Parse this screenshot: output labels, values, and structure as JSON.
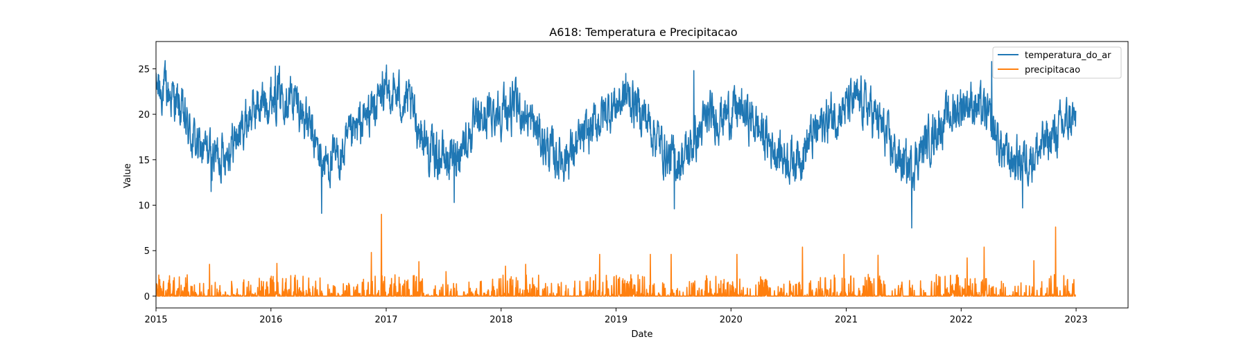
{
  "chart_data": {
    "type": "line",
    "title": "A618: Temperatura e Precipitacao",
    "xlabel": "Date",
    "ylabel": "Value",
    "xlim": [
      "2015-01-01",
      "2023-06-15"
    ],
    "ylim": [
      -1.3,
      28
    ],
    "x_ticks": [
      "2015",
      "2016",
      "2017",
      "2018",
      "2019",
      "2020",
      "2021",
      "2022",
      "2023"
    ],
    "y_ticks": [
      0,
      5,
      10,
      15,
      20,
      25
    ],
    "grid": false,
    "legend_position": "top-right",
    "x_start": "2015-01-01",
    "x_end": "2022-12-31",
    "series": [
      {
        "name": "temperatura_do_ar",
        "color": "#1f77b4",
        "monthly_mean": [
          22.8,
          22.3,
          20.5,
          18.0,
          16.2,
          15.8,
          15.5,
          16.3,
          17.5,
          19.5,
          20.8,
          21.5,
          22.3,
          22.5,
          21.5,
          19.8,
          17.0,
          14.5,
          14.8,
          15.5,
          17.5,
          19.0,
          20.5,
          21.8,
          22.5,
          21.8,
          20.8,
          18.5,
          16.0,
          15.5,
          15.0,
          16.0,
          17.5,
          18.8,
          19.8,
          20.5,
          20.5,
          20.8,
          20.0,
          18.5,
          16.8,
          15.5,
          15.3,
          16.0,
          17.0,
          18.5,
          19.8,
          20.8,
          21.5,
          21.8,
          20.5,
          19.0,
          17.0,
          15.0,
          14.8,
          15.8,
          17.5,
          19.5,
          19.8,
          20.0,
          20.5,
          20.0,
          19.0,
          17.5,
          16.3,
          15.5,
          15.0,
          16.0,
          17.5,
          18.8,
          19.8,
          20.5,
          21.0,
          21.5,
          20.5,
          19.0,
          16.8,
          15.0,
          14.0,
          15.5,
          17.0,
          18.5,
          19.5,
          20.5,
          21.5,
          21.0,
          20.0,
          18.0,
          15.5,
          15.0,
          15.0,
          15.5,
          16.5,
          17.5,
          18.5,
          19.5
        ],
        "daily_noise": 3.3,
        "extremes": [
          {
            "x": "2015-01-10",
            "y": 24.3
          },
          {
            "x": "2015-06-25",
            "y": 11.5
          },
          {
            "x": "2016-01-15",
            "y": 25.3
          },
          {
            "x": "2016-06-10",
            "y": 9.1
          },
          {
            "x": "2016-12-20",
            "y": 24.7
          },
          {
            "x": "2017-08-05",
            "y": 10.3
          },
          {
            "x": "2019-02-01",
            "y": 24.5
          },
          {
            "x": "2019-07-05",
            "y": 9.6
          },
          {
            "x": "2019-09-05",
            "y": 24.8
          },
          {
            "x": "2021-07-28",
            "y": 7.5
          },
          {
            "x": "2022-04-08",
            "y": 25.8
          },
          {
            "x": "2022-07-15",
            "y": 9.7
          }
        ]
      },
      {
        "name": "precipitacao",
        "color": "#ff7f0e",
        "rain_probability": 0.45,
        "typical_max": 1.5,
        "peaks": [
          {
            "x": "2015-06-20",
            "y": 3.5
          },
          {
            "x": "2016-01-20",
            "y": 3.6
          },
          {
            "x": "2016-06-05",
            "y": 2.0
          },
          {
            "x": "2016-11-15",
            "y": 4.8
          },
          {
            "x": "2016-12-17",
            "y": 9.0
          },
          {
            "x": "2017-04-15",
            "y": 3.8
          },
          {
            "x": "2017-07-10",
            "y": 2.7
          },
          {
            "x": "2018-01-15",
            "y": 3.3
          },
          {
            "x": "2018-03-20",
            "y": 3.5
          },
          {
            "x": "2018-11-10",
            "y": 4.6
          },
          {
            "x": "2019-04-20",
            "y": 4.6
          },
          {
            "x": "2019-06-25",
            "y": 4.6
          },
          {
            "x": "2020-01-20",
            "y": 4.6
          },
          {
            "x": "2020-08-15",
            "y": 5.4
          },
          {
            "x": "2020-12-25",
            "y": 4.6
          },
          {
            "x": "2021-04-12",
            "y": 4.5
          },
          {
            "x": "2022-01-20",
            "y": 4.2
          },
          {
            "x": "2022-03-15",
            "y": 5.4
          },
          {
            "x": "2022-08-20",
            "y": 3.9
          },
          {
            "x": "2022-10-28",
            "y": 7.6
          }
        ]
      }
    ]
  }
}
